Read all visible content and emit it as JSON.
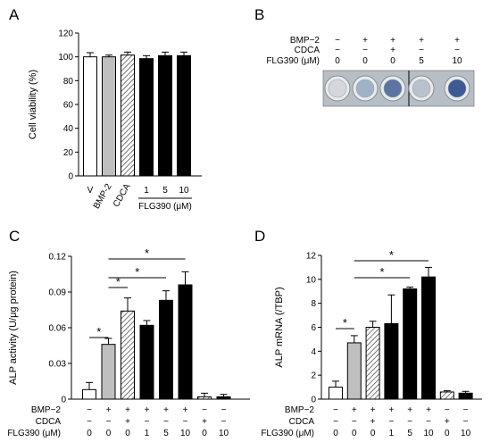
{
  "panels": {
    "A": "A",
    "B": "B",
    "C": "C",
    "D": "D"
  },
  "colors": {
    "white": "#ffffff",
    "gray": "#bfbfbf",
    "black": "#000000",
    "hatch": "#555555"
  },
  "chart_data": [
    {
      "panel": "A",
      "type": "bar",
      "ylabel": "Cell viability (%)",
      "ylim": [
        0,
        120
      ],
      "yticks": [
        0,
        20,
        40,
        60,
        80,
        100,
        120
      ],
      "categories": [
        "V",
        "BMP-2",
        "CDCA",
        "1",
        "5",
        "10"
      ],
      "group_label": "FLG390 (μM)",
      "values": [
        100,
        100,
        101.5,
        98.5,
        101,
        101
      ],
      "errors": [
        3.5,
        1.5,
        2.5,
        2.5,
        3,
        3
      ],
      "fills": [
        "white",
        "gray",
        "hatch",
        "black",
        "black",
        "black"
      ]
    },
    {
      "panel": "C",
      "type": "bar",
      "ylabel": "ALP activity (U/μg protein)",
      "ylim": [
        0,
        0.12
      ],
      "yticks": [
        "0",
        "0.03",
        "0.06",
        "0.09",
        "0.12"
      ],
      "yticks_values": [
        0,
        0.03,
        0.06,
        0.09,
        0.12
      ],
      "values": [
        0.008,
        0.046,
        0.074,
        0.062,
        0.083,
        0.096,
        0.002,
        0.002
      ],
      "errors": [
        0.006,
        0.005,
        0.011,
        0.004,
        0.008,
        0.011,
        0.003,
        0.002
      ],
      "fills": [
        "white",
        "gray",
        "hatch",
        "black",
        "black",
        "black",
        "hatch",
        "black"
      ],
      "significance": [
        {
          "from": 0,
          "to": 1,
          "label": "*"
        },
        {
          "from": 1,
          "to": 2,
          "label": "*"
        },
        {
          "from": 1,
          "to": 4,
          "label": "*"
        },
        {
          "from": 1,
          "to": 5,
          "label": "*"
        }
      ],
      "conditions": {
        "labels": [
          "BMP−2",
          "CDCA",
          "FLG390 (μM)"
        ],
        "rows": [
          [
            "−",
            "+",
            "+",
            "+",
            "+",
            "+",
            "−",
            "−"
          ],
          [
            "−",
            "−",
            "+",
            "−",
            "−",
            "−",
            "+",
            "−"
          ],
          [
            "0",
            "0",
            "0",
            "1",
            "5",
            "10",
            "0",
            "10"
          ]
        ]
      }
    },
    {
      "panel": "D",
      "type": "bar",
      "ylabel": "ALP mRNA (/TBP)",
      "ylim": [
        0,
        12
      ],
      "yticks": [
        "0",
        "2",
        "4",
        "6",
        "8",
        "10",
        "12"
      ],
      "yticks_values": [
        0,
        2,
        4,
        6,
        8,
        10,
        12
      ],
      "values": [
        1.0,
        4.7,
        6.0,
        6.3,
        9.2,
        10.2,
        0.6,
        0.5
      ],
      "errors": [
        0.5,
        0.6,
        0.5,
        2.4,
        0.15,
        0.8,
        0.1,
        0.15
      ],
      "fills": [
        "white",
        "gray",
        "hatch",
        "black",
        "black",
        "black",
        "hatch",
        "black"
      ],
      "significance": [
        {
          "from": 0,
          "to": 1,
          "label": "*"
        },
        {
          "from": 1,
          "to": 4,
          "label": "*"
        },
        {
          "from": 1,
          "to": 5,
          "label": "*"
        }
      ],
      "conditions": {
        "labels": [
          "BMP−2",
          "CDCA",
          "FLG390 (μM)"
        ],
        "rows": [
          [
            "−",
            "+",
            "+",
            "+",
            "+",
            "+",
            "−",
            "−"
          ],
          [
            "−",
            "−",
            "+",
            "−",
            "−",
            "−",
            "+",
            "−"
          ],
          [
            "0",
            "0",
            "0",
            "1",
            "5",
            "10",
            "0",
            "10"
          ]
        ]
      }
    }
  ],
  "panelB": {
    "labels": [
      "BMP−2",
      "CDCA",
      "FLG390 (μM)"
    ],
    "rows": [
      [
        "−",
        "+",
        "+",
        "+",
        "+"
      ],
      [
        "−",
        "−",
        "+",
        "−",
        "−"
      ],
      [
        "0",
        "0",
        "0",
        "5",
        "10"
      ]
    ],
    "well_colors": [
      "#d4d8dc",
      "#9fb2c8",
      "#5b74a0",
      "#b9c2cc",
      "#3d5a94"
    ]
  }
}
